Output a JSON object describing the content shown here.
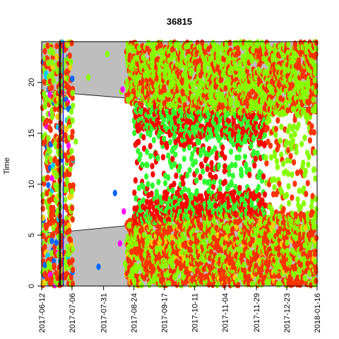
{
  "chart_data": {
    "type": "scatter",
    "title": "36815",
    "xlabel": "",
    "ylabel": "Time",
    "x_range": [
      "2017-06-12",
      "2018-01-16"
    ],
    "ylim": [
      0,
      24
    ],
    "x_ticks": [
      "2017-06-12",
      "2017-07-06",
      "2017-07-31",
      "2017-08-24",
      "2017-09-17",
      "2017-10-11",
      "2017-11-04",
      "2017-11-29",
      "2017-12-23",
      "2018-01-16"
    ],
    "y_ticks": [
      "0",
      "5",
      "10",
      "15",
      "20"
    ],
    "grid": false,
    "legend": "none",
    "background_band_color": "#bebebe",
    "night_band": {
      "lower_boundary": [
        {
          "date": "2017-06-12",
          "hour": 5.2
        },
        {
          "date": "2017-07-06",
          "hour": 5.4
        },
        {
          "date": "2017-08-24",
          "hour": 6.0
        },
        {
          "date": "2017-10-11",
          "hour": 6.8
        },
        {
          "date": "2017-11-29",
          "hour": 6.9
        },
        {
          "date": "2018-01-16",
          "hour": 6.5
        }
      ],
      "upper_boundary": [
        {
          "date": "2017-06-12",
          "hour": 19.1
        },
        {
          "date": "2017-07-06",
          "hour": 18.9
        },
        {
          "date": "2017-08-24",
          "hour": 18.4
        },
        {
          "date": "2017-10-11",
          "hour": 17.5
        },
        {
          "date": "2017-11-29",
          "hour": 17.2
        },
        {
          "date": "2018-01-16",
          "hour": 17.6
        }
      ]
    },
    "vertical_lines": [
      {
        "date": "2017-06-26",
        "color": "#000000"
      },
      {
        "date": "2017-06-27",
        "color": "#000000"
      },
      {
        "date": "2017-06-29",
        "color": "#0000ff"
      }
    ],
    "color_groups": [
      {
        "color": "#ff3300",
        "zone": "night"
      },
      {
        "color": "#88ff00",
        "zone": "night"
      },
      {
        "color": "#33ee33",
        "zone": "evening"
      },
      {
        "color": "#ff0000",
        "zone": "day_band"
      },
      {
        "color": "#33ff33",
        "zone": "day_scatter"
      },
      {
        "color": "#ffcc00",
        "zone": "night"
      },
      {
        "color": "#00ccff",
        "zone": "early"
      },
      {
        "color": "#0066ff",
        "zone": "early"
      },
      {
        "color": "#ff00ff",
        "zone": "early"
      },
      {
        "color": "#000000",
        "zone": "early"
      }
    ],
    "point_clusters": [
      {
        "date_start": "2017-06-12",
        "date_end": "2017-07-06",
        "hour_min": 0,
        "hour_max": 24,
        "dominant_colors": [
          "#ff3300",
          "#88ff00"
        ]
      },
      {
        "date_start": "2017-08-18",
        "date_end": "2018-01-16",
        "hour_min": 0,
        "hour_max": 7,
        "dominant_colors": [
          "#ff3300",
          "#88ff00"
        ]
      },
      {
        "date_start": "2017-08-18",
        "date_end": "2018-01-16",
        "hour_min": 17,
        "hour_max": 24,
        "dominant_colors": [
          "#88ff00",
          "#ff3300"
        ]
      },
      {
        "date_start": "2017-08-24",
        "date_end": "2017-11-29",
        "hour_min": 5.5,
        "hour_max": 8,
        "dominant_colors": [
          "#ff0000",
          "#33ff33"
        ]
      },
      {
        "date_start": "2017-08-24",
        "date_end": "2017-11-29",
        "hour_min": 14,
        "hour_max": 18.5,
        "dominant_colors": [
          "#ff0000",
          "#33ff33"
        ]
      },
      {
        "date_start": "2017-08-24",
        "date_end": "2017-12-10",
        "hour_min": 6,
        "hour_max": 17,
        "dominant_colors": [
          "#33ff33",
          "#ff0000"
        ]
      }
    ]
  }
}
